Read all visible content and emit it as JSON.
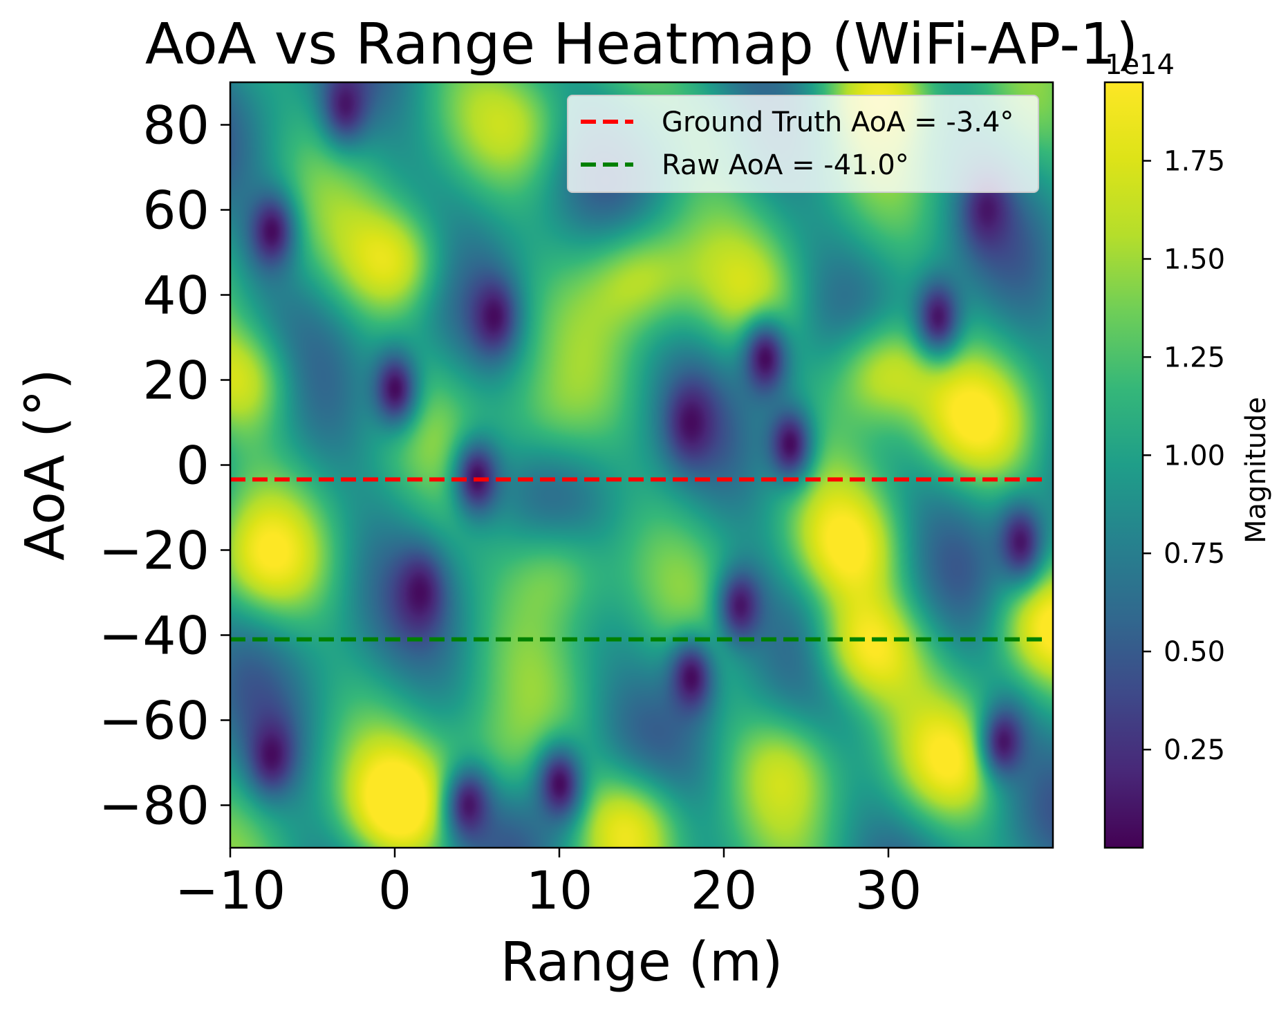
{
  "chart_data": {
    "type": "heatmap",
    "title": "AoA vs Range Heatmap (WiFi-AP-1)",
    "xlabel": "Range (m)",
    "ylabel": "AoA (°)",
    "xlim": [
      -10,
      40
    ],
    "ylim": [
      -90,
      90
    ],
    "x_ticks": [
      -10,
      0,
      10,
      20,
      30
    ],
    "x_tick_labels": [
      "−10",
      "0",
      "10",
      "20",
      "30"
    ],
    "y_ticks": [
      80,
      60,
      40,
      20,
      0,
      -20,
      -40,
      -60,
      -80
    ],
    "y_tick_labels": [
      "80",
      "60",
      "40",
      "20",
      "0",
      "−20",
      "−40",
      "−60",
      "−80"
    ],
    "colormap": "viridis",
    "colorbar": {
      "label": "Magnitude",
      "offset_text": "1e14",
      "range": [
        0.0,
        1.95
      ],
      "ticks": [
        0.25,
        0.5,
        0.75,
        1.0,
        1.25,
        1.5,
        1.75
      ],
      "tick_labels": [
        "0.25",
        "0.50",
        "0.75",
        "1.00",
        "1.25",
        "1.50",
        "1.75"
      ]
    },
    "hlines": [
      {
        "name": "Ground Truth AoA = -3.4°",
        "y": -3.4,
        "color": "#ff0000",
        "style": "dashed"
      },
      {
        "name": "Raw AoA = -41.0°",
        "y": -41.0,
        "color": "#008000",
        "style": "dashed"
      }
    ],
    "legend_loc": "upper-right",
    "hotspots": [
      {
        "x": 0.3,
        "y": 48,
        "value": 1.8
      },
      {
        "x": 14.8,
        "y": 45,
        "value": 1.7
      },
      {
        "x": 29.5,
        "y": 22,
        "value": 1.95
      },
      {
        "x": 28.5,
        "y": -43,
        "value": 1.95
      },
      {
        "x": 27.5,
        "y": -20,
        "value": 1.7
      },
      {
        "x": 0.3,
        "y": -80,
        "value": 1.9
      },
      {
        "x": 14.5,
        "y": -84,
        "value": 1.8
      },
      {
        "x": -9,
        "y": 20,
        "value": 1.7
      },
      {
        "x": -8,
        "y": -22,
        "value": 1.6
      },
      {
        "x": 10,
        "y": -24,
        "value": 1.6
      },
      {
        "x": 39.5,
        "y": -38,
        "value": 1.7
      },
      {
        "x": 35,
        "y": 10,
        "value": 1.6
      },
      {
        "x": 30,
        "y": 90,
        "value": 1.8
      },
      {
        "x": 9,
        "y": 10,
        "value": 1.3
      },
      {
        "x": 22,
        "y": 40,
        "value": 1.3
      },
      {
        "x": 6,
        "y": -70,
        "value": 1.35
      },
      {
        "x": 24,
        "y": -70,
        "value": 1.4
      },
      {
        "x": 34,
        "y": -70,
        "value": 1.6
      },
      {
        "x": 20,
        "y": 80,
        "value": 1.3
      },
      {
        "x": 8,
        "y": 80,
        "value": 1.3
      }
    ],
    "nulls": [
      {
        "x": -7.5,
        "y": 55,
        "value": 0.05
      },
      {
        "x": 6,
        "y": 35,
        "value": 0.05
      },
      {
        "x": 0,
        "y": 18,
        "value": 0.05
      },
      {
        "x": 18,
        "y": 10,
        "value": 0.05
      },
      {
        "x": 22.5,
        "y": 25,
        "value": 0.05
      },
      {
        "x": 24,
        "y": 5,
        "value": 0.05
      },
      {
        "x": 33,
        "y": 35,
        "value": 0.1
      },
      {
        "x": 5,
        "y": -3,
        "value": 0.05
      },
      {
        "x": 1.5,
        "y": -30,
        "value": 0.05
      },
      {
        "x": 18,
        "y": -50,
        "value": 0.05
      },
      {
        "x": 21,
        "y": -33,
        "value": 0.1
      },
      {
        "x": -7.5,
        "y": -68,
        "value": 0.05
      },
      {
        "x": 10,
        "y": -75,
        "value": 0.05
      },
      {
        "x": 38,
        "y": -18,
        "value": 0.1
      },
      {
        "x": 36,
        "y": 60,
        "value": 0.1
      },
      {
        "x": -3,
        "y": 85,
        "value": 0.1
      },
      {
        "x": 4.5,
        "y": -80,
        "value": 0.1
      },
      {
        "x": 37,
        "y": -65,
        "value": 0.1
      }
    ]
  }
}
